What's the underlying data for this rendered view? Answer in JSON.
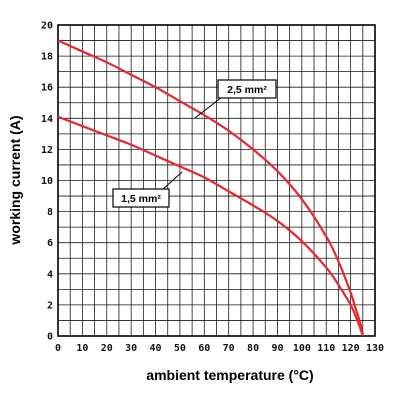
{
  "chart_data": {
    "type": "line",
    "title": "",
    "xlabel": "ambient temperature (°C)",
    "ylabel": "working current (A)",
    "xlim": [
      0,
      130
    ],
    "ylim": [
      0,
      20
    ],
    "x_ticks": [
      0,
      10,
      20,
      30,
      40,
      50,
      60,
      70,
      80,
      90,
      100,
      110,
      120,
      130
    ],
    "y_ticks": [
      0,
      2,
      4,
      6,
      8,
      10,
      12,
      14,
      16,
      18,
      20
    ],
    "grid": true,
    "grid_step": {
      "x": 5,
      "y": 1
    },
    "series": [
      {
        "name": "2,5 mm²",
        "color": "#e8262d",
        "x": [
          0,
          10,
          20,
          30,
          40,
          50,
          60,
          70,
          80,
          90,
          100,
          110,
          115,
          120,
          122,
          124,
          125
        ],
        "y": [
          19.0,
          18.3,
          17.6,
          16.8,
          16.0,
          15.1,
          14.2,
          13.2,
          12.0,
          10.6,
          8.8,
          6.4,
          4.8,
          2.8,
          1.8,
          0.8,
          0
        ]
      },
      {
        "name": "1,5 mm²",
        "color": "#e8262d",
        "x": [
          0,
          10,
          20,
          30,
          40,
          50,
          60,
          70,
          80,
          90,
          100,
          110,
          115,
          120,
          122,
          124,
          125
        ],
        "y": [
          14.1,
          13.5,
          12.9,
          12.3,
          11.6,
          10.9,
          10.2,
          9.3,
          8.4,
          7.4,
          6.1,
          4.4,
          3.3,
          2.0,
          1.3,
          0.5,
          0
        ]
      }
    ]
  }
}
